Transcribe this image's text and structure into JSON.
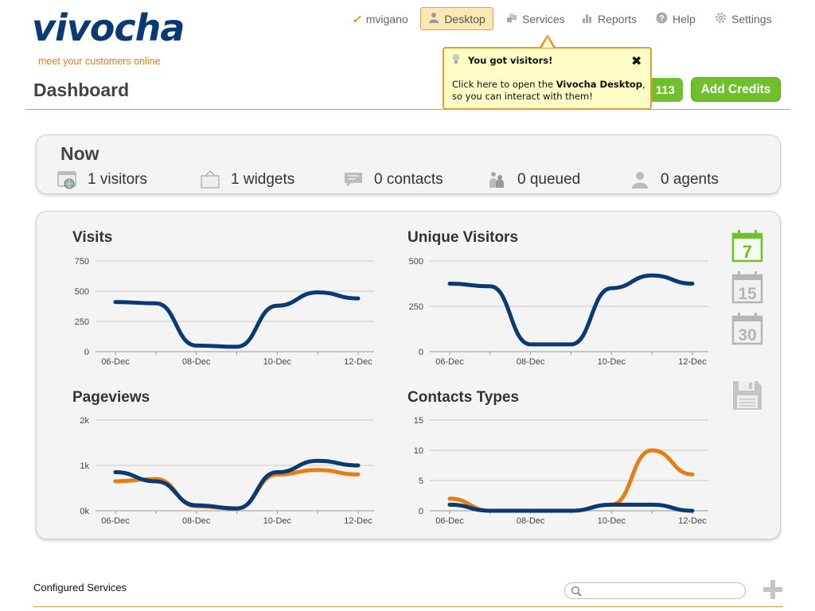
{
  "brand": {
    "name": "vivocha",
    "tagline": "meet your customers online",
    "colors": {
      "navy": "#0a3a73",
      "orange": "#e07b1e",
      "green": "#6fc02a"
    }
  },
  "nav": {
    "user": "mvigano",
    "desktop": "Desktop",
    "services": "Services",
    "reports": "Reports",
    "help": "Help",
    "settings": "Settings"
  },
  "page": {
    "title": "Dashboard"
  },
  "credits": {
    "count": "113",
    "add_label": "Add Credits"
  },
  "tooltip": {
    "title": "You got visitors!",
    "close": "✖",
    "body_pre": "Click here to open the ",
    "body_bold": "Vivocha Desktop",
    "body_post": ", so you can interact with them!"
  },
  "now": {
    "title": "Now",
    "stats": [
      {
        "icon": "browser-icon",
        "label": "1 visitors"
      },
      {
        "icon": "widget-icon",
        "label": "1 widgets"
      },
      {
        "icon": "chat-icon",
        "label": "0 contacts"
      },
      {
        "icon": "queue-icon",
        "label": "0 queued"
      },
      {
        "icon": "agent-icon",
        "label": "0 agents"
      }
    ]
  },
  "period_selector": [
    "7",
    "15",
    "30"
  ],
  "footer": {
    "configured_services": "Configured Services",
    "search_placeholder": ""
  },
  "chart_data": [
    {
      "type": "line",
      "title": "Visits",
      "x": [
        "06-Dec",
        "07-Dec",
        "08-Dec",
        "09-Dec",
        "10-Dec",
        "11-Dec",
        "12-Dec"
      ],
      "x_tick_labels": [
        "06-Dec",
        "08-Dec",
        "10-Dec",
        "12-Dec"
      ],
      "yticks": [
        "0",
        "250",
        "500",
        "750"
      ],
      "ylim": [
        0,
        750
      ],
      "series": [
        {
          "color": "#0a3a73",
          "values": [
            410,
            400,
            50,
            40,
            380,
            490,
            440
          ]
        }
      ]
    },
    {
      "type": "line",
      "title": "Unique Visitors",
      "x": [
        "06-Dec",
        "07-Dec",
        "08-Dec",
        "09-Dec",
        "10-Dec",
        "11-Dec",
        "12-Dec"
      ],
      "x_tick_labels": [
        "06-Dec",
        "08-Dec",
        "10-Dec",
        "12-Dec"
      ],
      "yticks": [
        "0",
        "250",
        "500"
      ],
      "ylim": [
        0,
        500
      ],
      "series": [
        {
          "color": "#0a3a73",
          "values": [
            375,
            360,
            40,
            40,
            350,
            420,
            375
          ]
        }
      ]
    },
    {
      "type": "line",
      "title": "Pageviews",
      "x": [
        "06-Dec",
        "07-Dec",
        "08-Dec",
        "09-Dec",
        "10-Dec",
        "11-Dec",
        "12-Dec"
      ],
      "x_tick_labels": [
        "06-Dec",
        "08-Dec",
        "10-Dec",
        "12-Dec"
      ],
      "yticks": [
        "0k",
        "1k",
        "2k"
      ],
      "ylim": [
        0,
        2000
      ],
      "series": [
        {
          "color": "#e87d12",
          "values": [
            650,
            700,
            100,
            50,
            800,
            900,
            800
          ]
        },
        {
          "color": "#0a3a73",
          "values": [
            850,
            650,
            120,
            50,
            850,
            1100,
            1000
          ]
        }
      ]
    },
    {
      "type": "line",
      "title": "Contacts Types",
      "x": [
        "06-Dec",
        "07-Dec",
        "08-Dec",
        "09-Dec",
        "10-Dec",
        "11-Dec",
        "12-Dec"
      ],
      "x_tick_labels": [
        "06-Dec",
        "08-Dec",
        "10-Dec",
        "12-Dec"
      ],
      "yticks": [
        "0",
        "5",
        "10",
        "15"
      ],
      "ylim": [
        0,
        15
      ],
      "series": [
        {
          "color": "#e87d12",
          "values": [
            2,
            0,
            0,
            0,
            1,
            10,
            6
          ]
        },
        {
          "color": "#0a3a73",
          "values": [
            1,
            0,
            0,
            0,
            1,
            1,
            0
          ]
        }
      ]
    }
  ]
}
